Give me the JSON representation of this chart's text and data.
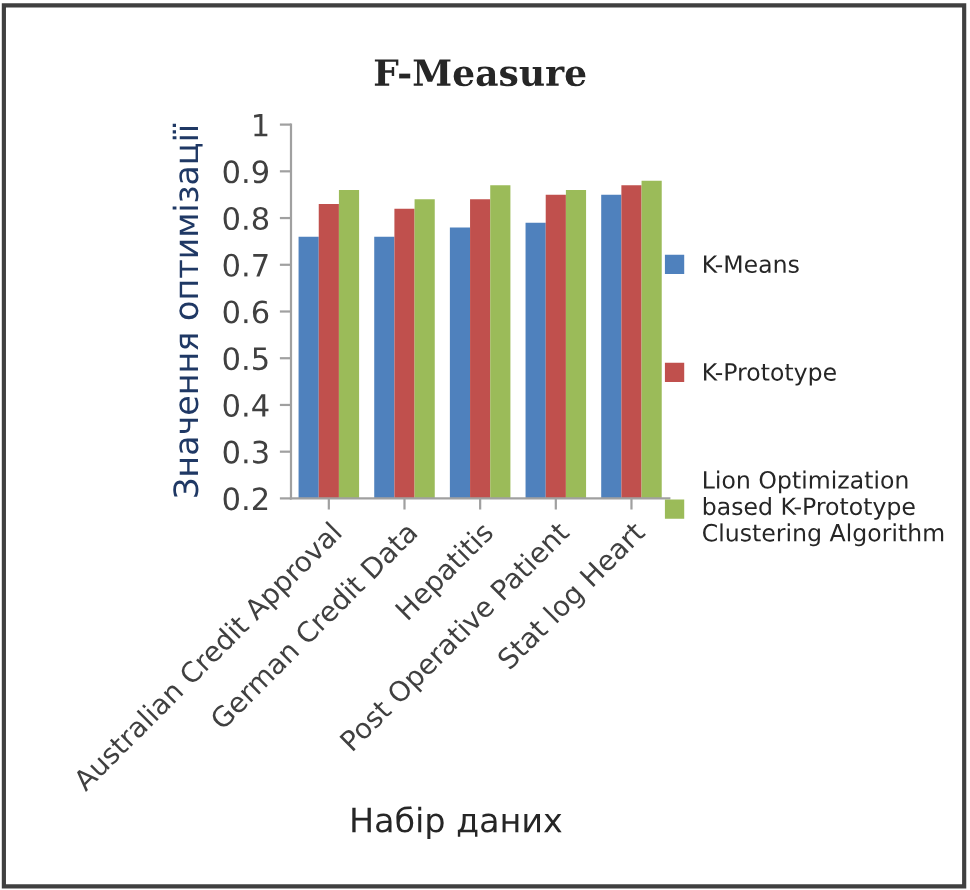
{
  "chart_data": {
    "type": "bar",
    "title": "F-Measure",
    "xlabel": "Набір даних",
    "ylabel": "Значення оптимізації",
    "categories": [
      "Australian Credit Approval",
      "German Credit Data",
      "Hepatitis",
      "Post Operative Patient",
      "Stat log Heart"
    ],
    "series": [
      {
        "name": "K-Means",
        "color": "#4f81bd",
        "values": [
          0.76,
          0.76,
          0.78,
          0.79,
          0.85
        ]
      },
      {
        "name": "K-Prototype",
        "color": "#c0504d",
        "values": [
          0.83,
          0.82,
          0.84,
          0.85,
          0.87
        ]
      },
      {
        "name": "Lion Optimization\nbased K-Prototype\nClustering Algorithm",
        "color": "#9bbb59",
        "values": [
          0.86,
          0.84,
          0.87,
          0.86,
          0.88
        ]
      }
    ],
    "ylim": [
      0.2,
      1
    ],
    "yticks": [
      0.2,
      0.3,
      0.4,
      0.5,
      0.6,
      0.7,
      0.8,
      0.9,
      1
    ],
    "grid": false,
    "legend": "right"
  }
}
